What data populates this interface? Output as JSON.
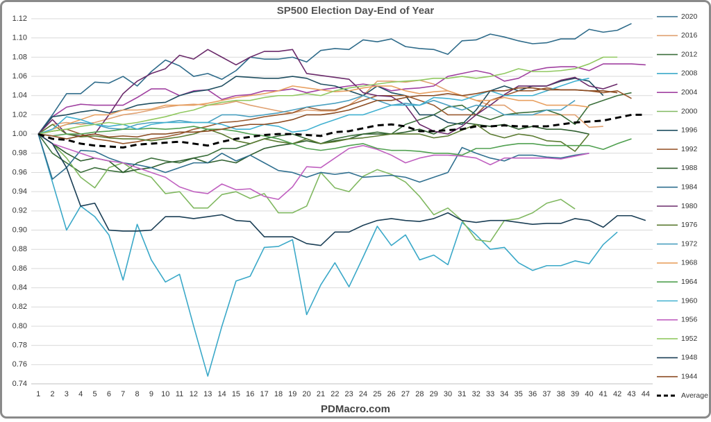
{
  "chart_data": {
    "type": "line",
    "title": "SP500 Election Day-End of Year",
    "footer": "PDMacro.com",
    "grid": true,
    "legend": "right",
    "categories": [
      1,
      2,
      3,
      4,
      5,
      6,
      7,
      8,
      9,
      10,
      11,
      12,
      13,
      14,
      15,
      16,
      17,
      18,
      19,
      20,
      21,
      22,
      23,
      24,
      25,
      26,
      27,
      28,
      29,
      30,
      31,
      32,
      33,
      34,
      35,
      36,
      37,
      38,
      39,
      40,
      41,
      42,
      43,
      44
    ],
    "ylim": [
      0.74,
      1.12
    ],
    "yticks": [
      0.74,
      0.76,
      0.78,
      {
        "value": 0.8,
        "label": "0.80"
      },
      0.82,
      0.84,
      0.86,
      0.88,
      {
        "value": 0.9,
        "label": "0.90"
      },
      0.92,
      0.94,
      0.96,
      0.98,
      {
        "value": 1,
        "label": "1.00"
      },
      1.02,
      1.04,
      1.06,
      1.08,
      {
        "value": 1.1,
        "label": "1.10"
      },
      1.12
    ],
    "series": [
      {
        "name": "2020",
        "color": "#2e6b8a",
        "values": [
          1.0,
          1.02,
          1.042,
          1.042,
          1.054,
          1.053,
          1.06,
          1.05,
          1.065,
          1.077,
          1.071,
          1.06,
          1.063,
          1.057,
          1.066,
          1.08,
          1.078,
          1.078,
          1.08,
          1.075,
          1.087,
          1.089,
          1.088,
          1.098,
          1.096,
          1.099,
          1.091,
          1.089,
          1.088,
          1.083,
          1.097,
          1.098,
          1.104,
          1.101,
          1.097,
          1.094,
          1.095,
          1.099,
          1.099,
          1.109,
          1.106,
          1.108,
          1.115,
          null
        ]
      },
      {
        "name": "2016",
        "color": "#e0a070",
        "values": [
          1.0,
          1.01,
          1.012,
          1.01,
          1.012,
          1.016,
          1.02,
          1.022,
          1.025,
          1.028,
          1.03,
          1.031,
          1.03,
          1.031,
          1.034,
          1.03,
          1.027,
          1.024,
          1.022,
          1.025,
          1.024,
          1.024,
          1.03,
          1.04,
          1.055,
          1.055,
          1.054,
          1.056,
          1.052,
          1.045,
          1.04,
          1.035,
          1.03,
          1.03,
          1.02,
          1.02,
          1.02,
          1.02,
          1.02,
          1.007,
          1.008,
          null,
          null,
          null
        ]
      },
      {
        "name": "2012",
        "color": "#3a6e3a",
        "values": [
          1.0,
          0.98,
          0.97,
          0.96,
          0.965,
          0.962,
          0.96,
          0.97,
          0.975,
          0.972,
          0.97,
          0.975,
          0.978,
          0.985,
          0.985,
          0.99,
          0.995,
          0.998,
          1.0,
          0.995,
          0.99,
          0.995,
          0.998,
          1.0,
          1.002,
          1.0,
          1.01,
          1.015,
          1.02,
          1.028,
          1.03,
          1.02,
          1.015,
          1.02,
          1.022,
          1.023,
          1.025,
          1.02,
          1.01,
          1.03,
          1.035,
          1.04,
          1.043,
          null
        ]
      },
      {
        "name": "2008",
        "color": "#3aa8c8",
        "values": [
          1.0,
          0.95,
          0.9,
          0.925,
          0.914,
          0.895,
          0.848,
          0.906,
          0.869,
          0.846,
          0.854,
          0.8,
          0.748,
          0.8,
          0.847,
          0.852,
          0.882,
          0.883,
          0.89,
          0.812,
          0.843,
          0.866,
          0.841,
          0.872,
          0.904,
          0.884,
          0.895,
          0.869,
          0.874,
          0.864,
          0.908,
          0.895,
          0.88,
          0.882,
          0.866,
          0.858,
          0.863,
          0.863,
          0.868,
          0.865,
          0.885,
          0.898,
          null,
          null
        ]
      },
      {
        "name": "2004",
        "color": "#a040a0",
        "values": [
          1.0,
          1.018,
          1.028,
          1.031,
          1.03,
          1.03,
          1.03,
          1.038,
          1.047,
          1.047,
          1.04,
          1.045,
          1.046,
          1.036,
          1.04,
          1.041,
          1.045,
          1.045,
          1.047,
          1.043,
          1.046,
          1.048,
          1.05,
          1.052,
          1.05,
          1.045,
          1.047,
          1.048,
          1.05,
          1.06,
          1.063,
          1.066,
          1.063,
          1.055,
          1.058,
          1.066,
          1.069,
          1.07,
          1.07,
          1.066,
          1.073,
          1.073,
          1.073,
          1.072
        ]
      },
      {
        "name": "2000",
        "color": "#80b860",
        "values": [
          1.0,
          0.99,
          0.975,
          0.955,
          0.944,
          0.965,
          0.97,
          0.96,
          0.955,
          0.938,
          0.94,
          0.923,
          0.923,
          0.937,
          0.94,
          0.933,
          0.938,
          0.918,
          0.918,
          0.925,
          0.96,
          0.944,
          0.94,
          0.956,
          0.963,
          0.958,
          0.95,
          0.935,
          0.916,
          0.923,
          0.91,
          0.89,
          0.888,
          0.91,
          0.912,
          0.918,
          0.928,
          0.932,
          0.922,
          null,
          null,
          null,
          null,
          null
        ]
      },
      {
        "name": "1996",
        "color": "#1f4e60",
        "values": [
          1.0,
          1.018,
          1.02,
          1.023,
          1.025,
          1.022,
          1.025,
          1.03,
          1.032,
          1.033,
          1.04,
          1.044,
          1.046,
          1.05,
          1.06,
          1.059,
          1.058,
          1.058,
          1.06,
          1.058,
          1.052,
          1.05,
          1.045,
          1.04,
          1.05,
          1.043,
          1.04,
          1.02,
          1.02,
          1.012,
          1.01,
          1.025,
          1.045,
          1.05,
          1.045,
          1.05,
          1.05,
          1.055,
          1.058,
          1.055,
          1.04,
          null,
          null,
          null
        ]
      },
      {
        "name": "1992",
        "color": "#9a5a30",
        "values": [
          1.0,
          1.003,
          1.005,
          1.0,
          0.995,
          0.993,
          0.99,
          0.992,
          0.995,
          0.997,
          1.0,
          1.005,
          1.008,
          1.012,
          1.013,
          1.015,
          1.018,
          1.02,
          1.022,
          1.028,
          1.025,
          1.025,
          1.03,
          1.035,
          1.04,
          1.04,
          1.04,
          1.035,
          1.03,
          1.02,
          1.02,
          1.02,
          1.035,
          1.04,
          1.045,
          1.045,
          1.048,
          1.046,
          1.046,
          1.045,
          1.043,
          1.045,
          1.037,
          null
        ]
      },
      {
        "name": "1988",
        "color": "#2e5e2e",
        "values": [
          1.0,
          0.99,
          0.98,
          0.972,
          0.975,
          0.972,
          0.96,
          0.963,
          0.965,
          0.97,
          0.972,
          0.975,
          0.97,
          0.973,
          0.97,
          0.978,
          0.985,
          0.988,
          0.99,
          0.993,
          0.99,
          0.993,
          0.995,
          1.0,
          1.0,
          1.0,
          1.002,
          1.005,
          1.0,
          1.008,
          1.012,
          1.01,
          1.008,
          1.01,
          1.005,
          1.008,
          1.005,
          1.005,
          1.003,
          1.0,
          null,
          null,
          null,
          null
        ]
      },
      {
        "name": "1984",
        "color": "#2f6f8f",
        "values": [
          1.0,
          0.953,
          0.965,
          0.983,
          0.982,
          0.975,
          0.97,
          0.968,
          0.965,
          0.96,
          0.965,
          0.97,
          0.97,
          0.98,
          0.972,
          0.978,
          0.97,
          0.962,
          0.96,
          0.955,
          0.96,
          0.958,
          0.96,
          0.955,
          0.956,
          0.957,
          0.955,
          0.95,
          0.955,
          0.96,
          0.986,
          0.98,
          0.975,
          0.972,
          0.978,
          0.978,
          0.976,
          0.975,
          0.978,
          0.98,
          null,
          null,
          null,
          null
        ]
      },
      {
        "name": "1980",
        "color": "#6a2a6a",
        "values": [
          1.0,
          1.015,
          1.0,
          0.998,
          1.0,
          1.02,
          1.042,
          1.055,
          1.063,
          1.068,
          1.082,
          1.078,
          1.088,
          1.08,
          1.072,
          1.08,
          1.086,
          1.086,
          1.088,
          1.063,
          1.061,
          1.059,
          1.057,
          1.043,
          1.04,
          1.039,
          1.03,
          1.01,
          1.003,
          1.0,
          1.008,
          1.02,
          1.03,
          1.041,
          1.05,
          1.05,
          1.05,
          1.056,
          1.059,
          1.05,
          1.047,
          1.052,
          null,
          null
        ]
      },
      {
        "name": "1976",
        "color": "#5a7a30",
        "values": [
          1.0,
          1.01,
          1.0,
          0.997,
          0.998,
          0.996,
          0.995,
          0.995,
          0.993,
          0.995,
          0.997,
          1.0,
          1.005,
          1.0,
          0.993,
          0.99,
          0.995,
          0.992,
          0.99,
          0.995,
          0.99,
          0.992,
          0.995,
          0.996,
          0.998,
          1.0,
          1.0,
          1.0,
          0.996,
          0.998,
          1.004,
          1.01,
          1.0,
          0.996,
          1.0,
          0.998,
          0.993,
          0.992,
          0.982,
          1.0,
          null,
          null,
          null,
          null
        ]
      },
      {
        "name": "1972",
        "color": "#4aa0c0",
        "values": [
          1.0,
          1.005,
          1.01,
          1.012,
          1.01,
          1.006,
          1.005,
          1.01,
          1.012,
          1.012,
          1.014,
          1.012,
          1.012,
          1.02,
          1.02,
          1.018,
          1.02,
          1.022,
          1.025,
          1.028,
          1.03,
          1.032,
          1.035,
          1.04,
          1.035,
          1.03,
          1.032,
          1.03,
          1.035,
          1.03,
          1.025,
          1.03,
          1.028,
          1.02,
          1.02,
          1.02,
          1.025,
          1.025,
          1.035,
          null,
          null,
          null,
          null,
          null
        ]
      },
      {
        "name": "1968",
        "color": "#e8a060",
        "values": [
          1.0,
          1.005,
          1.01,
          1.015,
          1.02,
          1.02,
          1.025,
          1.025,
          1.026,
          1.03,
          1.03,
          1.03,
          1.032,
          1.035,
          1.038,
          1.04,
          1.042,
          1.045,
          1.05,
          1.048,
          1.046,
          1.044,
          1.045,
          1.048,
          1.05,
          1.05,
          1.045,
          1.042,
          1.044,
          1.045,
          1.04,
          1.035,
          1.035,
          1.038,
          1.035,
          1.035,
          1.03,
          1.03,
          1.03,
          1.028,
          null,
          null,
          null,
          null
        ]
      },
      {
        "name": "1964",
        "color": "#50a050",
        "values": [
          1.0,
          0.998,
          1.0,
          1.0,
          1.002,
          1.003,
          1.005,
          1.005,
          1.006,
          1.005,
          1.006,
          1.008,
          1.005,
          1.005,
          1.003,
          1.0,
          0.998,
          0.995,
          0.99,
          0.985,
          0.983,
          0.985,
          0.988,
          0.99,
          0.985,
          0.983,
          0.983,
          0.982,
          0.98,
          0.98,
          0.978,
          0.985,
          0.985,
          0.988,
          0.99,
          0.99,
          0.988,
          0.988,
          0.988,
          0.988,
          0.984,
          0.99,
          0.995,
          null
        ]
      },
      {
        "name": "1960",
        "color": "#40b0d0",
        "values": [
          1.0,
          1.005,
          1.018,
          1.015,
          1.01,
          1.008,
          1.01,
          1.005,
          1.01,
          1.012,
          1.012,
          1.012,
          1.012,
          1.01,
          1.005,
          1.005,
          1.01,
          1.008,
          1.002,
          1.004,
          1.01,
          1.015,
          1.02,
          1.02,
          1.025,
          1.03,
          1.03,
          1.03,
          1.038,
          1.037,
          1.035,
          1.04,
          1.045,
          1.04,
          1.04,
          1.04,
          1.045,
          1.05,
          1.055,
          1.058,
          null,
          null,
          null,
          null
        ]
      },
      {
        "name": "1956",
        "color": "#c060c0",
        "values": [
          1.0,
          0.99,
          0.985,
          0.98,
          0.975,
          0.972,
          0.97,
          0.965,
          0.96,
          0.955,
          0.945,
          0.94,
          0.938,
          0.948,
          0.942,
          0.943,
          0.935,
          0.932,
          0.945,
          0.966,
          0.965,
          0.975,
          0.985,
          0.988,
          0.984,
          0.978,
          0.97,
          0.975,
          0.978,
          0.978,
          0.977,
          0.975,
          0.968,
          0.975,
          0.975,
          0.975,
          0.975,
          0.974,
          0.977,
          0.98,
          null,
          null,
          null,
          null
        ]
      },
      {
        "name": "1952",
        "color": "#90c860",
        "values": [
          1.0,
          1.003,
          1.005,
          1.008,
          1.01,
          1.012,
          1.01,
          1.012,
          1.015,
          1.018,
          1.022,
          1.025,
          1.03,
          1.033,
          1.035,
          1.035,
          1.038,
          1.04,
          1.04,
          1.042,
          1.04,
          1.045,
          1.048,
          1.05,
          1.052,
          1.054,
          1.055,
          1.056,
          1.058,
          1.058,
          1.06,
          1.058,
          1.06,
          1.063,
          1.068,
          1.065,
          1.065,
          1.066,
          1.068,
          1.073,
          1.08,
          1.08,
          null,
          null
        ]
      },
      {
        "name": "1948",
        "color": "#1a3e55",
        "values": [
          1.0,
          0.99,
          0.965,
          0.925,
          0.928,
          0.9,
          0.899,
          0.899,
          0.9,
          0.914,
          0.914,
          0.912,
          0.914,
          0.916,
          0.91,
          0.909,
          0.893,
          0.893,
          0.893,
          0.886,
          0.884,
          0.898,
          0.898,
          0.905,
          0.91,
          0.912,
          0.91,
          0.909,
          0.912,
          0.918,
          0.91,
          0.908,
          0.91,
          0.91,
          0.908,
          0.906,
          0.907,
          0.907,
          0.912,
          0.91,
          0.903,
          0.915,
          0.915,
          0.91
        ]
      },
      {
        "name": "1944",
        "color": "#8a4a20",
        "values": [
          1.0,
          0.998,
          0.995,
          0.998,
          1.0,
          0.997,
          0.998,
          0.997,
          1.0,
          1.0,
          1.002,
          1.002,
          1.003,
          1.005,
          1.008,
          1.01,
          1.01,
          1.012,
          1.015,
          1.02,
          1.02,
          1.022,
          1.025,
          1.03,
          1.035,
          1.035,
          1.038,
          1.04,
          1.04,
          1.042,
          1.04,
          1.042,
          1.045,
          1.045,
          1.048,
          1.048,
          1.046,
          1.046,
          1.046,
          1.045,
          1.045,
          1.043,
          null,
          null
        ]
      },
      {
        "name": "Average",
        "color": "#000000",
        "dashed": true,
        "values": [
          1.0,
          0.995,
          0.994,
          0.99,
          0.988,
          0.987,
          0.986,
          0.989,
          0.99,
          0.991,
          0.992,
          0.99,
          0.988,
          0.992,
          0.995,
          0.997,
          0.999,
          1.0,
          1.0,
          0.999,
          0.998,
          1.002,
          1.003,
          1.006,
          1.009,
          1.01,
          1.008,
          1.003,
          1.003,
          1.004,
          1.005,
          1.008,
          1.008,
          1.009,
          1.008,
          1.008,
          1.008,
          1.01,
          1.012,
          1.013,
          1.014,
          1.017,
          1.02,
          1.02
        ]
      }
    ]
  }
}
